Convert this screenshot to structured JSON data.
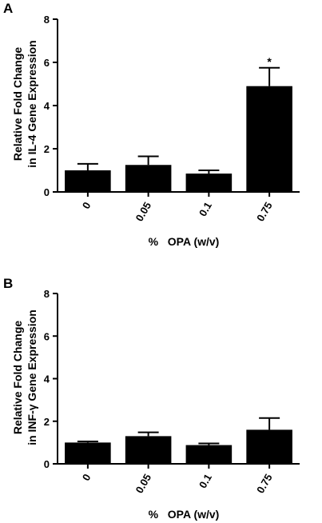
{
  "chart_data": [
    {
      "type": "bar",
      "panel": "A",
      "categories": [
        "0",
        "0.05",
        "0.1",
        "0.75"
      ],
      "values": [
        1.0,
        1.25,
        0.85,
        4.9
      ],
      "errors": [
        0.3,
        0.4,
        0.15,
        0.85
      ],
      "annotations": [
        "",
        "",
        "",
        "*"
      ],
      "xlabel": "%   OPA (w/v)",
      "ylabel_lines": [
        "Relative Fold Change",
        "in IL-4 Gene Expression"
      ],
      "ylim": [
        0,
        8
      ],
      "yticks": [
        "0",
        "2",
        "4",
        "6",
        "8"
      ],
      "bar_color": "#000000",
      "grid": false
    },
    {
      "type": "bar",
      "panel": "B",
      "categories": [
        "0",
        "0.05",
        "0.1",
        "0.75"
      ],
      "values": [
        1.0,
        1.3,
        0.88,
        1.6
      ],
      "errors": [
        0.05,
        0.18,
        0.08,
        0.55
      ],
      "annotations": [
        "",
        "",
        "",
        ""
      ],
      "xlabel": "%   OPA (w/v)",
      "ylabel_lines": [
        "Relative Fold Change",
        "in INF-γ Gene Expression"
      ],
      "ylim": [
        0,
        8
      ],
      "yticks": [
        "0",
        "2",
        "4",
        "6",
        "8"
      ],
      "bar_color": "#000000",
      "grid": false
    }
  ]
}
